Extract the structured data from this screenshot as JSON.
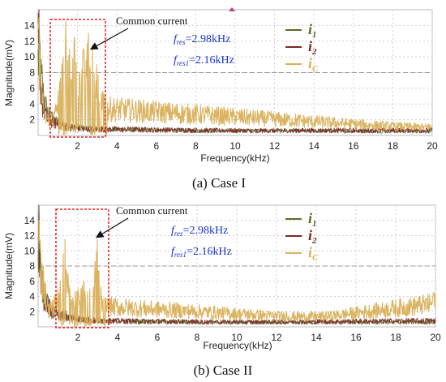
{
  "chart_data": [
    {
      "type": "line",
      "caption": "(a)  Case I",
      "xlabel": "Frequency(kHz)",
      "ylabel": "Magnitude(mV)",
      "xlim": [
        0,
        20
      ],
      "ylim": [
        0,
        16
      ],
      "xticks": [
        2,
        4,
        6,
        8,
        10,
        12,
        14,
        16,
        18,
        20
      ],
      "yticks": [
        2,
        4,
        6,
        8,
        10,
        12,
        14
      ],
      "grid": "dashed",
      "legend_position": "top-right",
      "annotation": {
        "text": "Common current",
        "region_khz": [
          0.9,
          3.5
        ]
      },
      "fres": {
        "symbol": "f",
        "subscript": "res",
        "value": "=2.98kHz"
      },
      "fres1": {
        "symbol": "f",
        "subscript": "res1",
        "value": "=2.16kHz"
      },
      "series": [
        {
          "symbol": "i",
          "subscript": "1",
          "color": "#5a6a2a",
          "peaks": [
            [
              0.05,
              14
            ],
            [
              0.2,
              9
            ],
            [
              0.4,
              5
            ],
            [
              0.7,
              3
            ],
            [
              1.5,
              1.5
            ],
            [
              3.0,
              1.2
            ],
            [
              8,
              0.9
            ],
            [
              20,
              0.8
            ]
          ]
        },
        {
          "symbol": "i",
          "subscript": "2",
          "color": "#7a2a22",
          "peaks": [
            [
              0.05,
              16
            ],
            [
              0.2,
              6
            ],
            [
              0.45,
              3
            ],
            [
              1.0,
              2
            ],
            [
              2.2,
              1.2
            ],
            [
              10,
              0.9
            ],
            [
              20,
              1.0
            ]
          ]
        },
        {
          "symbol": "i",
          "subscript": "C",
          "color": "#d9b05a",
          "peaks": [
            [
              0.05,
              15
            ],
            [
              0.3,
              3
            ],
            [
              0.8,
              3
            ],
            [
              1.2,
              9
            ],
            [
              1.4,
              14.5
            ],
            [
              1.6,
              11
            ],
            [
              1.85,
              12.5
            ],
            [
              2.1,
              8
            ],
            [
              2.3,
              11
            ],
            [
              2.55,
              13
            ],
            [
              2.75,
              11.5
            ],
            [
              2.98,
              9
            ],
            [
              3.4,
              5
            ],
            [
              17.5,
              1.8
            ],
            [
              19.8,
              1.5
            ]
          ]
        }
      ]
    },
    {
      "type": "line",
      "caption": "(b)  Case II",
      "xlabel": "Frequency(kHz)",
      "ylabel": "Magnitude(mV)",
      "xlim": [
        0,
        20
      ],
      "ylim": [
        0,
        16
      ],
      "xticks": [
        2,
        4,
        6,
        8,
        10,
        12,
        14,
        16,
        18,
        20
      ],
      "yticks": [
        2,
        4,
        6,
        8,
        10,
        12,
        14
      ],
      "grid": "dashed",
      "legend_position": "top-right",
      "annotation": {
        "text": "Common current",
        "region_khz": [
          0.4,
          3.5
        ]
      },
      "fres": {
        "symbol": "f",
        "subscript": "res",
        "value": "=2.98kHz"
      },
      "fres1": {
        "symbol": "f",
        "subscript": "res1",
        "value": "=2.16kHz"
      },
      "series": [
        {
          "symbol": "i",
          "subscript": "1",
          "color": "#5a6a2a",
          "peaks": [
            [
              0.05,
              15
            ],
            [
              0.2,
              8
            ],
            [
              0.5,
              4
            ],
            [
              0.9,
              3
            ],
            [
              1.6,
              1.8
            ],
            [
              3.0,
              1.2
            ],
            [
              8,
              0.9
            ],
            [
              20,
              0.9
            ]
          ]
        },
        {
          "symbol": "i",
          "subscript": "2",
          "color": "#7a2a22",
          "peaks": [
            [
              0.05,
              16
            ],
            [
              0.25,
              6
            ],
            [
              0.6,
              3
            ],
            [
              1.2,
              2
            ],
            [
              2.5,
              1.2
            ],
            [
              10,
              0.9
            ],
            [
              20,
              1.2
            ]
          ]
        },
        {
          "symbol": "i",
          "subscript": "C",
          "color": "#d9b05a",
          "peaks": [
            [
              0.05,
              14
            ],
            [
              0.5,
              3
            ],
            [
              1.0,
              5
            ],
            [
              1.35,
              11.5
            ],
            [
              1.6,
              5
            ],
            [
              2.0,
              5
            ],
            [
              2.3,
              6
            ],
            [
              2.6,
              5
            ],
            [
              2.98,
              11.5
            ],
            [
              3.2,
              4
            ],
            [
              12.5,
              2
            ],
            [
              14.5,
              2
            ],
            [
              19.9,
              4.5
            ]
          ]
        }
      ]
    }
  ]
}
